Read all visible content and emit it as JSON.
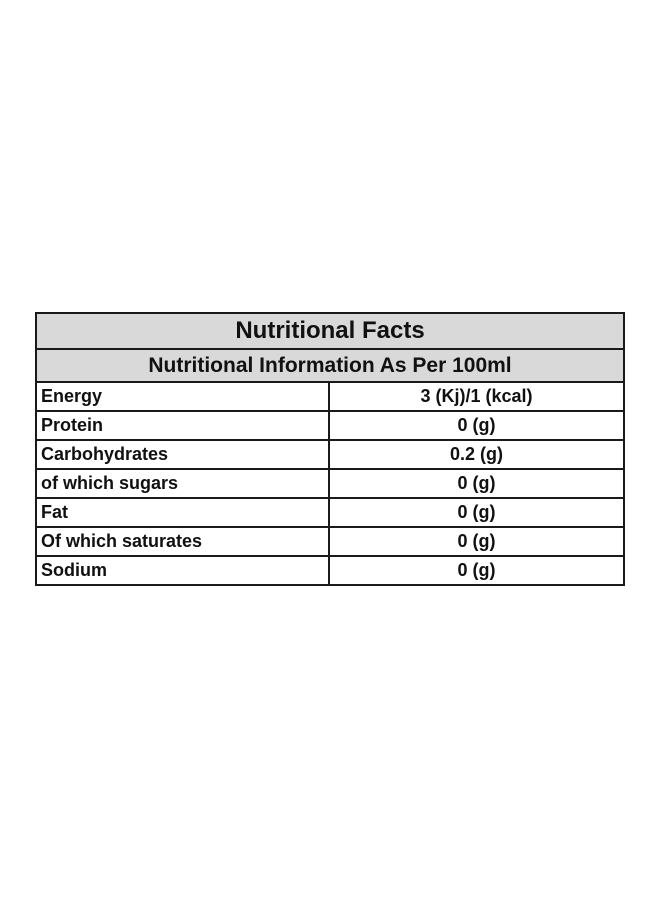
{
  "table": {
    "title": "Nutritional Facts",
    "subtitle": "Nutritional Information As Per 100ml",
    "rows": [
      {
        "label": "Energy",
        "value": "3 (Kj)/1 (kcal)"
      },
      {
        "label": "Protein",
        "value": "0 (g)"
      },
      {
        "label": "Carbohydrates",
        "value": "0.2 (g)"
      },
      {
        "label": "of which sugars",
        "value": "0 (g)"
      },
      {
        "label": "Fat",
        "value": "0 (g)"
      },
      {
        "label": "Of which saturates",
        "value": "0 (g)"
      },
      {
        "label": "Sodium",
        "value": "0 (g)"
      }
    ]
  }
}
